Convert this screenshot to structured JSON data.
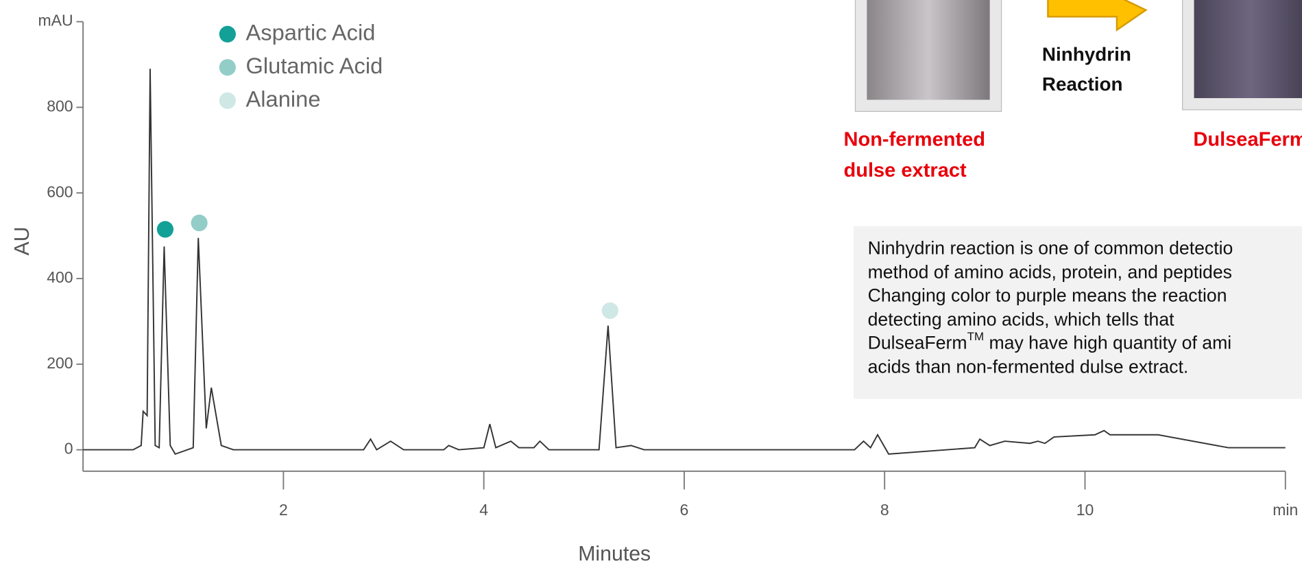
{
  "chart_data": {
    "type": "line",
    "x_label": "Minutes",
    "y_label": "AU",
    "xlim": [
      0,
      12
    ],
    "ylim": [
      -50,
      1000
    ],
    "xticks": [
      2,
      4,
      6,
      8,
      10,
      {
        "value": 12,
        "label": "min"
      }
    ],
    "yticks": [
      0,
      200,
      400,
      600,
      800,
      {
        "value": 1000,
        "label": "mAU"
      }
    ],
    "trace": {
      "color": "#333333",
      "x": [
        0,
        0.5,
        0.58,
        0.6,
        0.64,
        0.67,
        0.72,
        0.76,
        0.81,
        0.87,
        0.92,
        1.1,
        1.15,
        1.23,
        1.28,
        1.38,
        1.5,
        2.8,
        2.87,
        2.93,
        3.07,
        3.2,
        3.6,
        3.65,
        3.75,
        4.0,
        4.06,
        4.12,
        4.27,
        4.35,
        4.5,
        4.56,
        4.65,
        5.15,
        5.24,
        5.32,
        5.47,
        5.6,
        7.7,
        7.79,
        7.86,
        7.93,
        8.04,
        8.9,
        8.95,
        9.05,
        9.2,
        9.45,
        9.53,
        9.6,
        9.69,
        10.1,
        10.19,
        10.25,
        10.73,
        11.43,
        12
      ],
      "values": [
        0,
        0,
        10,
        90,
        80,
        890,
        10,
        5,
        475,
        10,
        -10,
        5,
        495,
        50,
        145,
        10,
        0,
        0,
        25,
        0,
        20,
        0,
        0,
        10,
        0,
        5,
        60,
        5,
        20,
        5,
        5,
        20,
        0,
        0,
        290,
        5,
        10,
        0,
        0,
        20,
        5,
        35,
        -10,
        5,
        25,
        10,
        20,
        15,
        20,
        15,
        30,
        35,
        45,
        35,
        35,
        5,
        5
      ]
    },
    "peaks": [
      {
        "name": "Aspartic Acid",
        "color": "#12a097",
        "x": 0.82,
        "y": 515
      },
      {
        "name": "Glutamic Acid",
        "color": "#93cdc8",
        "x": 1.16,
        "y": 530
      },
      {
        "name": "Alanine",
        "color": "#cfe8e5",
        "x": 5.26,
        "y": 325
      }
    ]
  },
  "annotations": {
    "reaction": [
      "Ninhydrin",
      "Reaction"
    ],
    "left_label": [
      "Non-fermented",
      "dulse extract"
    ],
    "right_label": "DulseaFerm",
    "note": [
      "Ninhydrin reaction is one of common detectio",
      "method of amino acids, protein, and peptides",
      "Changing color to purple means the reaction",
      "detecting amino acids, which tells that",
      "DulseaFerm",
      "TM",
      " may have high quantity of ami",
      "acids than non-fermented dulse extract."
    ]
  }
}
